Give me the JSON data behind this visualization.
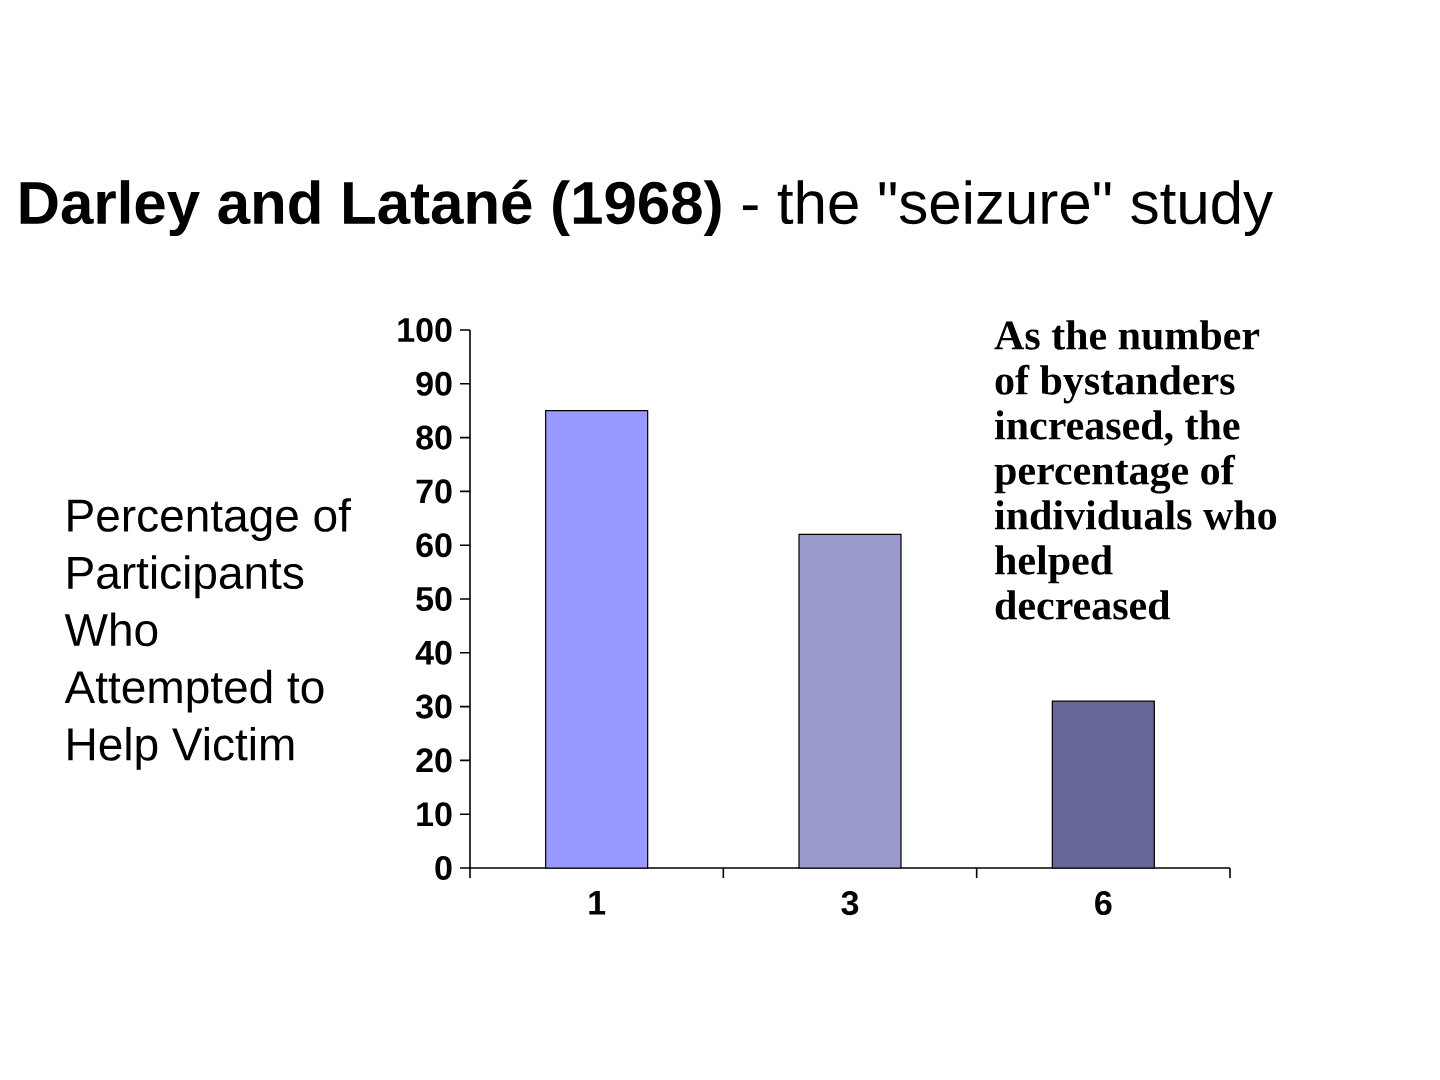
{
  "chart_data": {
    "type": "bar",
    "title": "**Darley and Latané (1968)** - the \"seizure\" study",
    "ylabel": "Percentage of Participants Who Attempted to Help Victim",
    "annotations": [
      "As the number of bystanders increased, the percentage of individuals who helped decreased"
    ],
    "categories": [
      "1",
      "3",
      "6"
    ],
    "values": [
      85,
      62,
      31
    ],
    "colors": [
      "#9999ff",
      "#9999cc",
      "#666699"
    ],
    "ylim": [
      0,
      100
    ],
    "yticks": [
      0,
      10,
      20,
      30,
      40,
      50,
      60,
      70,
      80,
      90,
      100
    ]
  }
}
